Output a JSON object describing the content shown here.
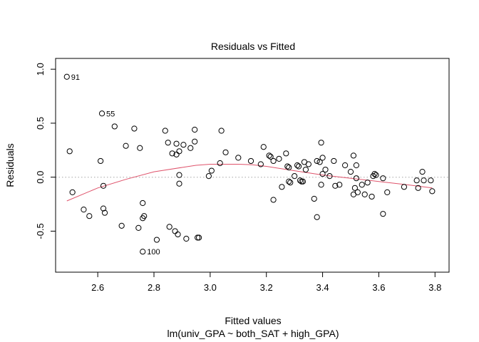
{
  "chart_data": {
    "type": "scatter",
    "title": "Residuals vs Fitted",
    "xlabel": "Fitted values",
    "subtitle": "lm(univ_GPA ~ both_SAT + high_GPA)",
    "ylabel": "Residuals",
    "xlim": [
      2.45,
      3.85
    ],
    "ylim": [
      -0.88,
      1.1
    ],
    "xticks": [
      "2.6",
      "2.8",
      "3.0",
      "3.2",
      "3.4",
      "3.6",
      "3.8"
    ],
    "yticks": [
      "-0.5",
      "0.0",
      "0.5",
      "1.0"
    ],
    "reference_line_y": 0,
    "points": [
      [
        2.49,
        0.93
      ],
      [
        2.5,
        0.24
      ],
      [
        2.51,
        -0.14
      ],
      [
        2.55,
        -0.3
      ],
      [
        2.57,
        -0.36
      ],
      [
        2.61,
        0.15
      ],
      [
        2.615,
        0.59
      ],
      [
        2.62,
        -0.08
      ],
      [
        2.62,
        -0.29
      ],
      [
        2.625,
        -0.33
      ],
      [
        2.66,
        0.47
      ],
      [
        2.685,
        -0.45
      ],
      [
        2.7,
        0.29
      ],
      [
        2.73,
        0.45
      ],
      [
        2.745,
        -0.47
      ],
      [
        2.75,
        0.27
      ],
      [
        2.76,
        -0.24
      ],
      [
        2.76,
        -0.38
      ],
      [
        2.765,
        -0.36
      ],
      [
        2.76,
        -0.69
      ],
      [
        2.81,
        -0.58
      ],
      [
        2.84,
        0.43
      ],
      [
        2.85,
        0.32
      ],
      [
        2.855,
        -0.46
      ],
      [
        2.865,
        0.22
      ],
      [
        2.875,
        -0.5
      ],
      [
        2.88,
        0.21
      ],
      [
        2.88,
        0.31
      ],
      [
        2.885,
        -0.53
      ],
      [
        2.89,
        0.24
      ],
      [
        2.89,
        0.02
      ],
      [
        2.89,
        -0.06
      ],
      [
        2.905,
        0.3
      ],
      [
        2.915,
        -0.57
      ],
      [
        2.93,
        0.27
      ],
      [
        2.945,
        0.44
      ],
      [
        2.945,
        0.33
      ],
      [
        2.955,
        -0.56
      ],
      [
        2.96,
        -0.56
      ],
      [
        2.995,
        0.01
      ],
      [
        3.005,
        0.06
      ],
      [
        3.035,
        0.13
      ],
      [
        3.04,
        0.43
      ],
      [
        3.055,
        0.23
      ],
      [
        3.1,
        0.18
      ],
      [
        3.145,
        0.15
      ],
      [
        3.18,
        0.12
      ],
      [
        3.19,
        0.28
      ],
      [
        3.21,
        0.2
      ],
      [
        3.215,
        0.19
      ],
      [
        3.225,
        0.15
      ],
      [
        3.225,
        -0.21
      ],
      [
        3.245,
        0.17
      ],
      [
        3.255,
        -0.09
      ],
      [
        3.27,
        0.22
      ],
      [
        3.275,
        0.1
      ],
      [
        3.28,
        0.09
      ],
      [
        3.28,
        -0.04
      ],
      [
        3.285,
        -0.05
      ],
      [
        3.3,
        0.01
      ],
      [
        3.31,
        0.11
      ],
      [
        3.315,
        0.1
      ],
      [
        3.32,
        -0.03
      ],
      [
        3.325,
        -0.04
      ],
      [
        3.33,
        -0.04
      ],
      [
        3.335,
        0.14
      ],
      [
        3.34,
        0.07
      ],
      [
        3.35,
        0.12
      ],
      [
        3.37,
        -0.2
      ],
      [
        3.38,
        0.15
      ],
      [
        3.38,
        -0.37
      ],
      [
        3.39,
        0.14
      ],
      [
        3.395,
        0.32
      ],
      [
        3.395,
        -0.07
      ],
      [
        3.4,
        0.03
      ],
      [
        3.4,
        0.18
      ],
      [
        3.41,
        0.07
      ],
      [
        3.425,
        0.01
      ],
      [
        3.44,
        0.15
      ],
      [
        3.445,
        -0.08
      ],
      [
        3.46,
        -0.07
      ],
      [
        3.48,
        0.11
      ],
      [
        3.5,
        0.05
      ],
      [
        3.51,
        0.2
      ],
      [
        3.51,
        -0.16
      ],
      [
        3.515,
        -0.1
      ],
      [
        3.52,
        0.11
      ],
      [
        3.52,
        -0.01
      ],
      [
        3.525,
        -0.14
      ],
      [
        3.54,
        -0.07
      ],
      [
        3.55,
        -0.16
      ],
      [
        3.56,
        -0.05
      ],
      [
        3.575,
        -0.18
      ],
      [
        3.58,
        0.01
      ],
      [
        3.585,
        0.03
      ],
      [
        3.59,
        0.02
      ],
      [
        3.615,
        -0.01
      ],
      [
        3.615,
        -0.34
      ],
      [
        3.63,
        -0.14
      ],
      [
        3.69,
        -0.09
      ],
      [
        3.735,
        -0.03
      ],
      [
        3.74,
        -0.1
      ],
      [
        3.755,
        0.05
      ],
      [
        3.76,
        -0.03
      ],
      [
        3.785,
        -0.03
      ],
      [
        3.79,
        -0.13
      ]
    ],
    "annotations": [
      {
        "label": "91",
        "x": 2.49,
        "y": 0.93
      },
      {
        "label": "55",
        "x": 2.615,
        "y": 0.59
      },
      {
        "label": "100",
        "x": 2.76,
        "y": -0.69
      }
    ],
    "smooth_line": {
      "x": [
        2.49,
        2.6,
        2.7,
        2.8,
        2.9,
        2.95,
        3.0,
        3.05,
        3.1,
        3.15,
        3.2,
        3.3,
        3.4,
        3.5,
        3.6,
        3.7,
        3.79
      ],
      "y": [
        -0.22,
        -0.1,
        -0.02,
        0.05,
        0.09,
        0.11,
        0.12,
        0.12,
        0.12,
        0.115,
        0.1,
        0.06,
        0.02,
        -0.01,
        -0.04,
        -0.07,
        -0.1
      ]
    }
  }
}
